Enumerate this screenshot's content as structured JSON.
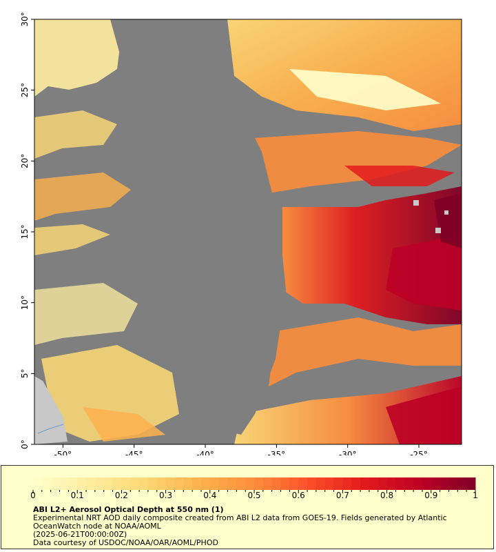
{
  "map": {
    "lon_ticks": [
      {
        "value": -50,
        "label": "-50°"
      },
      {
        "value": -45,
        "label": "-45°"
      },
      {
        "value": -40,
        "label": "-40°"
      },
      {
        "value": -35,
        "label": "-35°"
      },
      {
        "value": -30,
        "label": "-30°"
      },
      {
        "value": -25,
        "label": "-25°"
      }
    ],
    "lat_ticks": [
      {
        "value": 0,
        "label": "0°"
      },
      {
        "value": 5,
        "label": "5°"
      },
      {
        "value": 10,
        "label": "10°"
      },
      {
        "value": 15,
        "label": "15°"
      },
      {
        "value": 20,
        "label": "20°"
      },
      {
        "value": 25,
        "label": "25°"
      },
      {
        "value": 30,
        "label": "30°"
      }
    ],
    "lon_range": [
      -52,
      -22
    ],
    "lat_range": [
      0,
      30
    ],
    "colors": {
      "no_data": "#7f7f7f",
      "land": "#c8c8c8",
      "river": "#6b9bd1"
    }
  },
  "colorbar": {
    "min": 0,
    "max": 1,
    "tick_labels": [
      "0",
      "0.1",
      "0.2",
      "0.3",
      "0.4",
      "0.5",
      "0.6",
      "0.7",
      "0.8",
      "0.9",
      "1"
    ],
    "colors": [
      "#ffffcc",
      "#ffeda0",
      "#fed976",
      "#feb24c",
      "#fd8d3c",
      "#fc4e2a",
      "#e31a1c",
      "#bd0026",
      "#800026"
    ]
  },
  "caption": {
    "title": "ABI L2+ Aerosol Optical Depth at 550 nm (1)",
    "line2": "Experimental NRT AOD daily composite created from ABI L2 data from GOES-19. Fields generated by Atlantic OceanWatch node at NOAA/AOML",
    "line3": "(2025-06-21T00:00:00Z)",
    "line4": "Data courtesy of USDOC/NOAA/OAR/AOML/PHOD"
  }
}
